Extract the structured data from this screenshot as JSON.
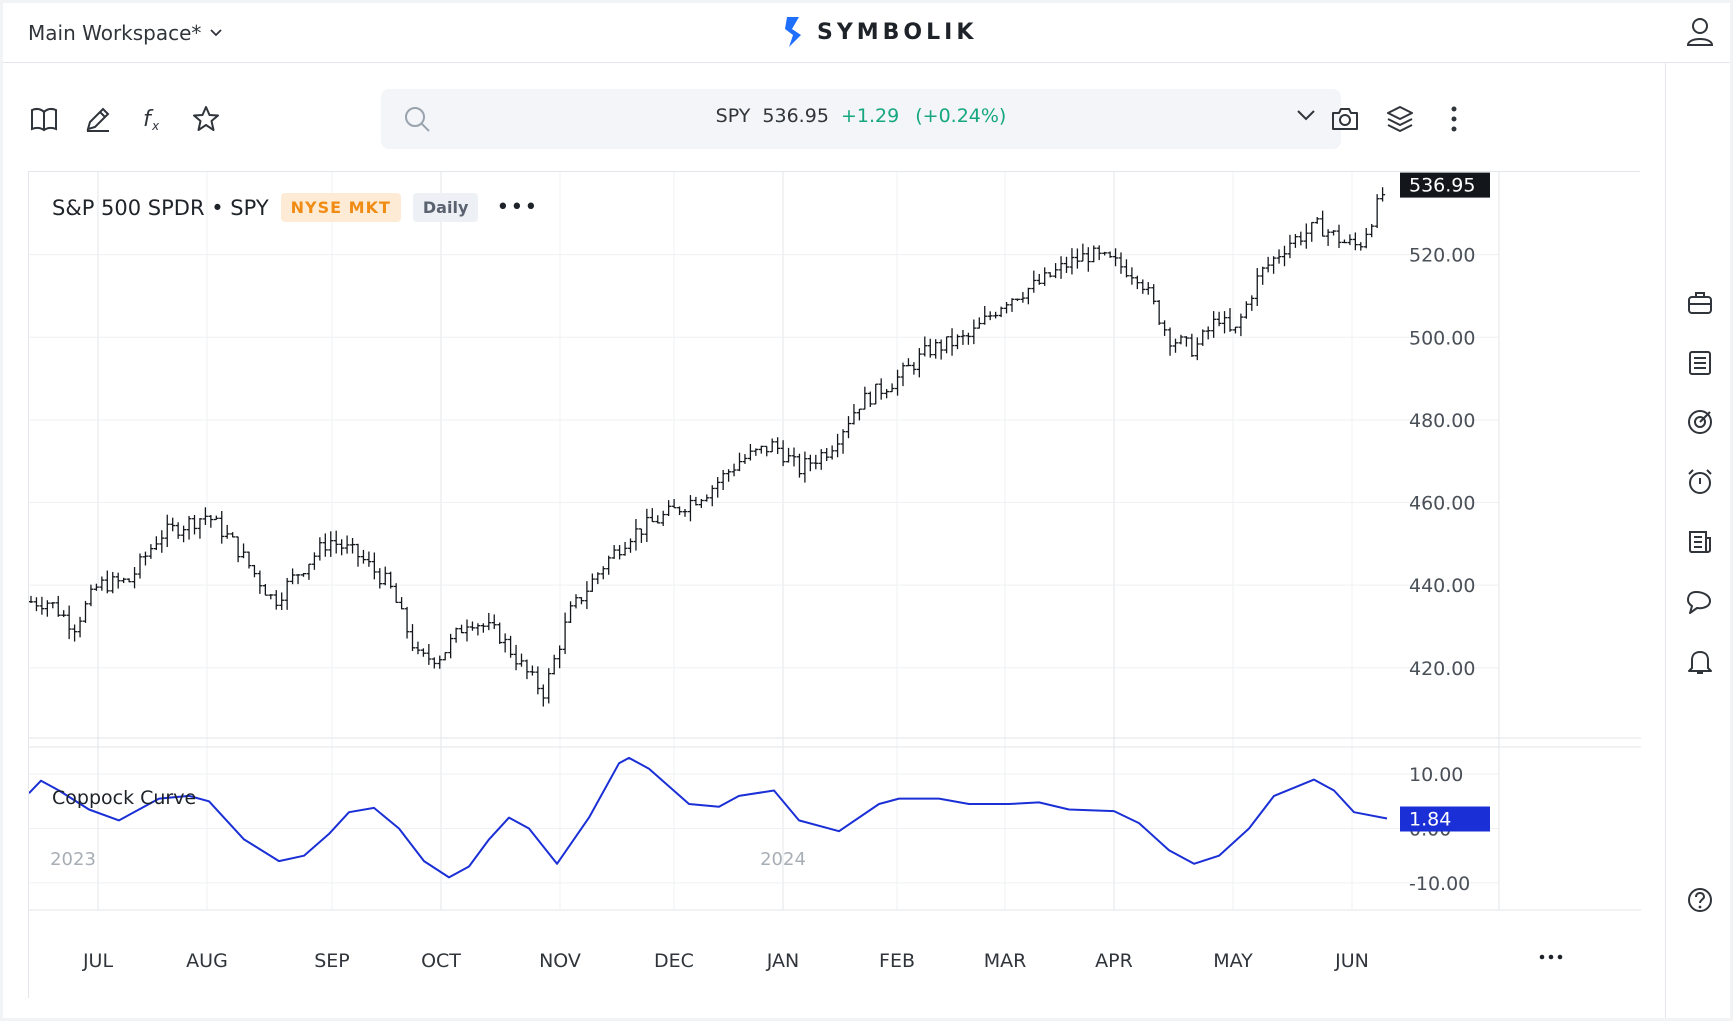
{
  "header": {
    "workspace": "Main Workspace*",
    "brand": "SYMBOLIK"
  },
  "search": {
    "symbol": "SPY",
    "price": "536.95",
    "change": "+1.29",
    "change_pct": "(+0.24%)"
  },
  "chart": {
    "title": "S&P 500 SPDR • SPY",
    "exchange": "NYSE MKT",
    "interval": "Daily",
    "last_price_label": "536.95",
    "indicator_label": "Coppock Curve",
    "indicator_value_label": "1.84"
  },
  "colors": {
    "accent": "#1a2fd6",
    "positive": "#16a781",
    "exchange_badge": "#f08c14",
    "price_tag": "#13171c"
  },
  "icons": {
    "toolbar": [
      "book-icon",
      "pencil-icon",
      "function-icon",
      "star-icon"
    ],
    "toolbar_right": [
      "camera-icon",
      "layers-icon",
      "more-vertical-icon"
    ],
    "rail": [
      "briefcase-icon",
      "list-icon",
      "target-icon",
      "alarm-icon",
      "news-icon",
      "chat-icon",
      "bell-icon",
      "help-icon"
    ]
  },
  "chart_data": [
    {
      "type": "ohlc",
      "xaxis": {
        "ticks": [
          "JUL",
          "AUG",
          "SEP",
          "OCT",
          "NOV",
          "DEC",
          "JAN",
          "FEB",
          "MAR",
          "APR",
          "MAY",
          "JUN"
        ],
        "year_labels": [
          "2023",
          "2024"
        ]
      },
      "yaxis": {
        "ticks": [
          420,
          440,
          460,
          480,
          500,
          520
        ],
        "range": [
          403,
          540
        ]
      },
      "closes_by_month": [
        {
          "month": "JUN",
          "close": 436
        },
        {
          "month": "JUL",
          "close": 440
        },
        {
          "month": "AUG",
          "close": 450
        },
        {
          "month": "SEP",
          "close": 448
        },
        {
          "month": "OCT",
          "close": 425
        },
        {
          "month": "NOV",
          "close": 418
        },
        {
          "month": "DEC",
          "close": 458
        },
        {
          "month": "JAN",
          "close": 476
        },
        {
          "month": "FEB",
          "close": 490
        },
        {
          "month": "MAR",
          "close": 512
        },
        {
          "month": "APR",
          "close": 520
        },
        {
          "month": "MAY",
          "close": 503
        },
        {
          "month": "JUN",
          "close": 529
        },
        {
          "month": "JUN",
          "close": 536.95
        }
      ]
    },
    {
      "type": "line",
      "name": "Coppock Curve",
      "yaxis": {
        "ticks": [
          10,
          0,
          -10
        ],
        "tick_labels": [
          "10.00",
          "0.00",
          "-10.00"
        ],
        "range": [
          -15,
          15
        ]
      },
      "points": [
        {
          "x": "JUN",
          "y": 9
        },
        {
          "x": "JUL",
          "y": 4
        },
        {
          "x": "JUL",
          "y": 2.5
        },
        {
          "x": "AUG",
          "y": 6
        },
        {
          "x": "AUG",
          "y": 5
        },
        {
          "x": "SEP",
          "y": -5
        },
        {
          "x": "SEP",
          "y": 2
        },
        {
          "x": "SEP",
          "y": 3.5
        },
        {
          "x": "OCT",
          "y": -9
        },
        {
          "x": "OCT",
          "y": -4
        },
        {
          "x": "NOV",
          "y": 2
        },
        {
          "x": "NOV",
          "y": -6.5
        },
        {
          "x": "NOV",
          "y": 13
        },
        {
          "x": "DEC",
          "y": 5
        },
        {
          "x": "DEC",
          "y": 4.5
        },
        {
          "x": "JAN",
          "y": 7
        },
        {
          "x": "JAN",
          "y": 1
        },
        {
          "x": "FEB",
          "y": -1
        },
        {
          "x": "FEB",
          "y": 6
        },
        {
          "x": "MAR",
          "y": 4.5
        },
        {
          "x": "MAR",
          "y": 5
        },
        {
          "x": "APR",
          "y": 3.5
        },
        {
          "x": "APR",
          "y": 3
        },
        {
          "x": "MAY",
          "y": -7
        },
        {
          "x": "MAY",
          "y": -5
        },
        {
          "x": "MAY",
          "y": 5
        },
        {
          "x": "JUN",
          "y": 8.5
        },
        {
          "x": "JUN",
          "y": 1.84
        }
      ]
    }
  ]
}
